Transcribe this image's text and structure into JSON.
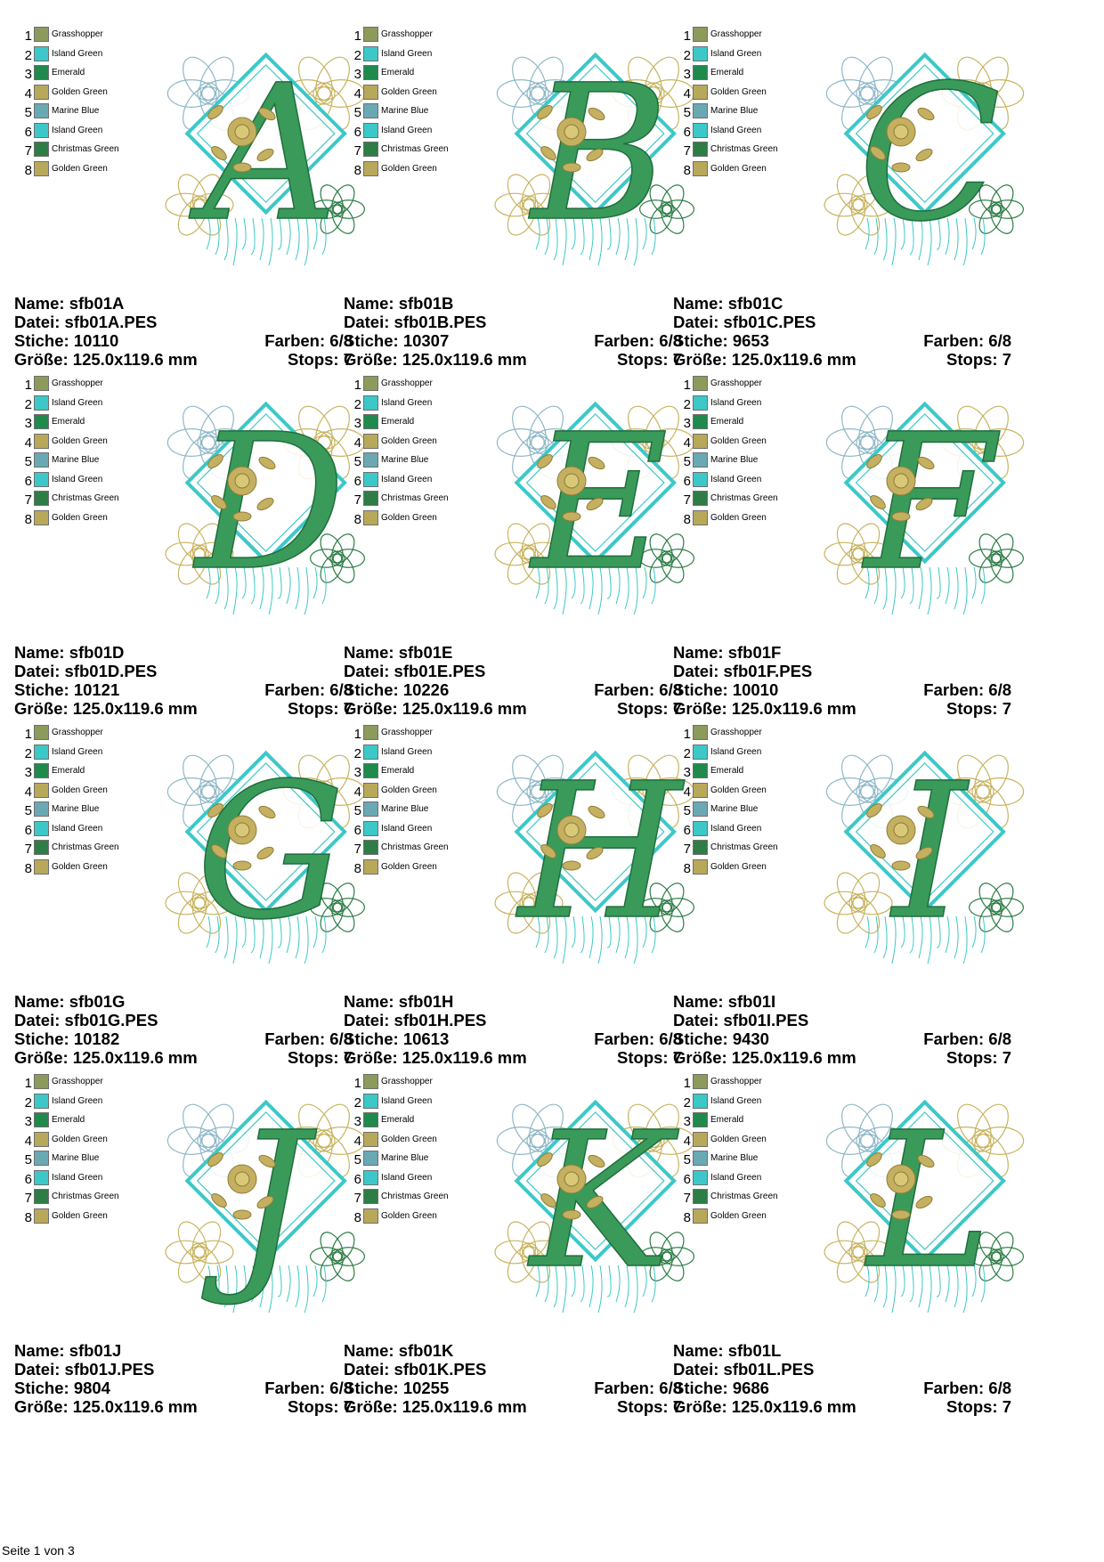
{
  "labels": {
    "name": "Name:",
    "datei": "Datei:",
    "stiche": "Stiche:",
    "groesse": "Größe:",
    "farben": "Farben:",
    "stops": "Stops:"
  },
  "palette": [
    {
      "num": "1",
      "name": "Grasshopper",
      "color": "#8c9a5b"
    },
    {
      "num": "2",
      "name": "Island Green",
      "color": "#3cc8c8"
    },
    {
      "num": "3",
      "name": "Emerald",
      "color": "#1f8a4c"
    },
    {
      "num": "4",
      "name": "Golden Green",
      "color": "#b8a85a"
    },
    {
      "num": "5",
      "name": "Marine Blue",
      "color": "#6aa8b4"
    },
    {
      "num": "6",
      "name": "Island Green",
      "color": "#3cc8c8"
    },
    {
      "num": "7",
      "name": "Christmas Green",
      "color": "#2e7d46"
    },
    {
      "num": "8",
      "name": "Golden Green",
      "color": "#b8a85a"
    }
  ],
  "colors": {
    "letter": "#3a9a5a",
    "letter_dark": "#1f6e3c",
    "rose": "#c4b060",
    "frame": "#3cc8c8",
    "outline_blue": "#8fb8c8",
    "outline_gold": "#c8b460",
    "outline_green": "#2e7d46"
  },
  "designs": [
    {
      "letter": "A",
      "name": "sfb01A",
      "file": "sfb01A.PES",
      "stitches": "10110",
      "colors": "6/8",
      "size": "125.0x119.6 mm",
      "stops": "7"
    },
    {
      "letter": "B",
      "name": "sfb01B",
      "file": "sfb01B.PES",
      "stitches": "10307",
      "colors": "6/8",
      "size": "125.0x119.6 mm",
      "stops": "7"
    },
    {
      "letter": "C",
      "name": "sfb01C",
      "file": "sfb01C.PES",
      "stitches": "9653",
      "colors": "6/8",
      "size": "125.0x119.6 mm",
      "stops": "7"
    },
    {
      "letter": "D",
      "name": "sfb01D",
      "file": "sfb01D.PES",
      "stitches": "10121",
      "colors": "6/8",
      "size": "125.0x119.6 mm",
      "stops": "7"
    },
    {
      "letter": "E",
      "name": "sfb01E",
      "file": "sfb01E.PES",
      "stitches": "10226",
      "colors": "6/8",
      "size": "125.0x119.6 mm",
      "stops": "7"
    },
    {
      "letter": "F",
      "name": "sfb01F",
      "file": "sfb01F.PES",
      "stitches": "10010",
      "colors": "6/8",
      "size": "125.0x119.6 mm",
      "stops": "7"
    },
    {
      "letter": "G",
      "name": "sfb01G",
      "file": "sfb01G.PES",
      "stitches": "10182",
      "colors": "6/8",
      "size": "125.0x119.6 mm",
      "stops": "7"
    },
    {
      "letter": "H",
      "name": "sfb01H",
      "file": "sfb01H.PES",
      "stitches": "10613",
      "colors": "6/8",
      "size": "125.0x119.6 mm",
      "stops": "7"
    },
    {
      "letter": "I",
      "name": "sfb01I",
      "file": "sfb01I.PES",
      "stitches": "9430",
      "colors": "6/8",
      "size": "125.0x119.6 mm",
      "stops": "7"
    },
    {
      "letter": "J",
      "name": "sfb01J",
      "file": "sfb01J.PES",
      "stitches": "9804",
      "colors": "6/8",
      "size": "125.0x119.6 mm",
      "stops": "7"
    },
    {
      "letter": "K",
      "name": "sfb01K",
      "file": "sfb01K.PES",
      "stitches": "10255",
      "colors": "6/8",
      "size": "125.0x119.6 mm",
      "stops": "7"
    },
    {
      "letter": "L",
      "name": "sfb01L",
      "file": "sfb01L.PES",
      "stitches": "9686",
      "colors": "6/8",
      "size": "125.0x119.6 mm",
      "stops": "7"
    }
  ],
  "footer": "Seite 1 von 3"
}
